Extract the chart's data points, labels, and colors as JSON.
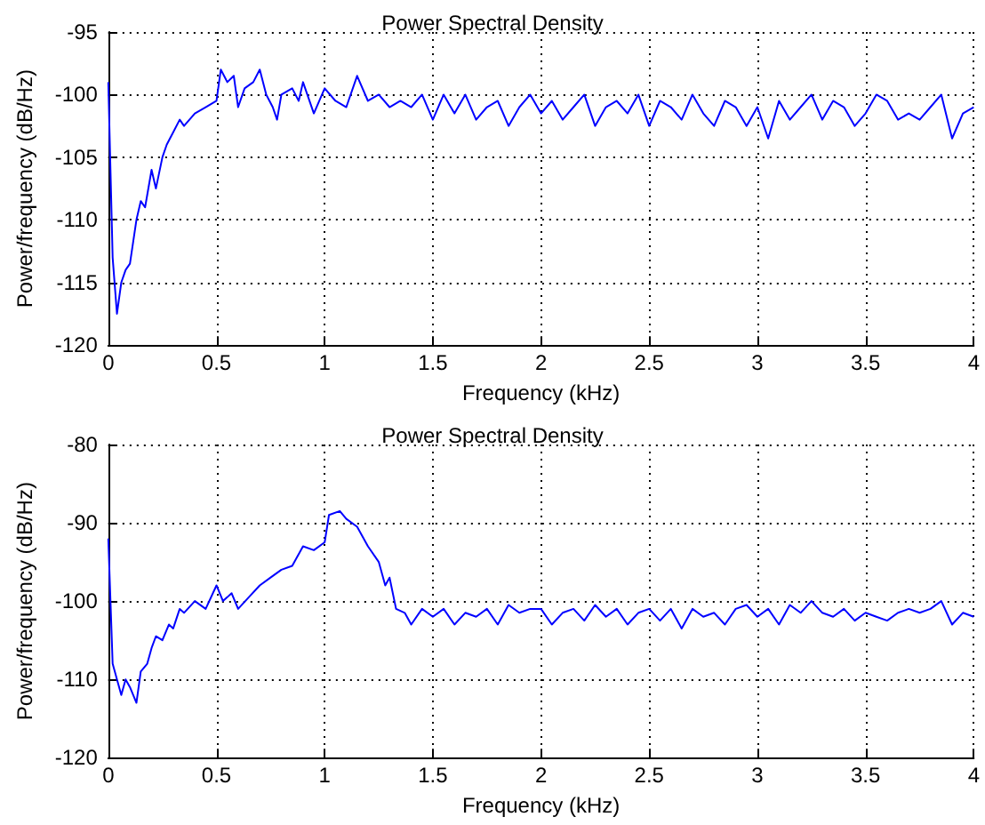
{
  "chart_data": [
    {
      "type": "line",
      "title": "Power Spectral Density",
      "xlabel": "Frequency (kHz)",
      "ylabel": "Power/frequency (dB/Hz)",
      "xlim": [
        0,
        4
      ],
      "xticks": [
        0,
        0.5,
        1,
        1.5,
        2,
        2.5,
        3,
        3.5,
        4
      ],
      "ylim": [
        -120,
        -95
      ],
      "yticks": [
        -120,
        -115,
        -110,
        -105,
        -100,
        -95
      ],
      "grid": true,
      "marker": "none",
      "line_style": "solid",
      "series": [
        {
          "color": "#0000ff",
          "x": [
            0,
            0.01,
            0.02,
            0.04,
            0.06,
            0.08,
            0.1,
            0.13,
            0.15,
            0.17,
            0.2,
            0.22,
            0.25,
            0.27,
            0.3,
            0.33,
            0.35,
            0.4,
            0.45,
            0.5,
            0.52,
            0.55,
            0.58,
            0.6,
            0.63,
            0.67,
            0.7,
            0.73,
            0.76,
            0.78,
            0.8,
            0.85,
            0.88,
            0.9,
            0.95,
            1.0,
            1.05,
            1.1,
            1.15,
            1.2,
            1.25,
            1.3,
            1.35,
            1.4,
            1.45,
            1.5,
            1.55,
            1.6,
            1.65,
            1.7,
            1.75,
            1.8,
            1.85,
            1.9,
            1.95,
            2.0,
            2.05,
            2.1,
            2.15,
            2.2,
            2.25,
            2.3,
            2.35,
            2.4,
            2.45,
            2.5,
            2.55,
            2.6,
            2.65,
            2.7,
            2.75,
            2.8,
            2.85,
            2.9,
            2.95,
            3.0,
            3.05,
            3.1,
            3.15,
            3.2,
            3.25,
            3.3,
            3.35,
            3.4,
            3.45,
            3.5,
            3.55,
            3.6,
            3.65,
            3.7,
            3.75,
            3.8,
            3.85,
            3.9,
            3.95,
            4.0
          ],
          "values": [
            -99,
            -106,
            -113,
            -117.5,
            -115,
            -114,
            -113.5,
            -110,
            -108.5,
            -109,
            -106,
            -107.5,
            -105,
            -104,
            -103,
            -102,
            -102.5,
            -101.5,
            -101,
            -100.5,
            -98,
            -99,
            -98.5,
            -101,
            -99.5,
            -99,
            -98,
            -100,
            -101,
            -102,
            -100,
            -99.5,
            -100.5,
            -99,
            -101.5,
            -99.5,
            -100.5,
            -101,
            -98.5,
            -100.5,
            -100,
            -101,
            -100.5,
            -101,
            -100,
            -102,
            -100,
            -101.5,
            -100,
            -102,
            -101,
            -100.5,
            -102.5,
            -101,
            -100,
            -101.5,
            -100.5,
            -102,
            -101,
            -100,
            -102.5,
            -101,
            -100.5,
            -101.5,
            -100,
            -102.5,
            -100.5,
            -101,
            -102,
            -100,
            -101.5,
            -102.5,
            -100.5,
            -101,
            -102.5,
            -101,
            -103.5,
            -100.5,
            -102,
            -101,
            -100,
            -102,
            -100.5,
            -101,
            -102.5,
            -101.5,
            -100,
            -100.5,
            -102,
            -101.5,
            -102,
            -101,
            -100,
            -103.5,
            -101.5,
            -101
          ]
        }
      ]
    },
    {
      "type": "line",
      "title": "Power Spectral Density",
      "xlabel": "Frequency (kHz)",
      "ylabel": "Power/frequency (dB/Hz)",
      "xlim": [
        0,
        4
      ],
      "xticks": [
        0,
        0.5,
        1,
        1.5,
        2,
        2.5,
        3,
        3.5,
        4
      ],
      "ylim": [
        -120,
        -80
      ],
      "yticks": [
        -120,
        -110,
        -100,
        -90,
        -80
      ],
      "grid": true,
      "marker": "none",
      "line_style": "solid",
      "series": [
        {
          "color": "#0000ff",
          "x": [
            0,
            0.01,
            0.02,
            0.04,
            0.06,
            0.08,
            0.1,
            0.13,
            0.15,
            0.18,
            0.2,
            0.22,
            0.25,
            0.28,
            0.3,
            0.33,
            0.35,
            0.4,
            0.45,
            0.5,
            0.53,
            0.57,
            0.6,
            0.65,
            0.7,
            0.75,
            0.8,
            0.85,
            0.9,
            0.95,
            1.0,
            1.02,
            1.07,
            1.1,
            1.15,
            1.2,
            1.25,
            1.28,
            1.3,
            1.33,
            1.37,
            1.4,
            1.45,
            1.5,
            1.55,
            1.6,
            1.65,
            1.7,
            1.75,
            1.8,
            1.85,
            1.9,
            1.95,
            2.0,
            2.05,
            2.1,
            2.15,
            2.2,
            2.25,
            2.3,
            2.35,
            2.4,
            2.45,
            2.5,
            2.55,
            2.6,
            2.65,
            2.7,
            2.75,
            2.8,
            2.85,
            2.9,
            2.95,
            3.0,
            3.05,
            3.1,
            3.15,
            3.2,
            3.25,
            3.3,
            3.35,
            3.4,
            3.45,
            3.5,
            3.55,
            3.6,
            3.65,
            3.7,
            3.75,
            3.8,
            3.85,
            3.9,
            3.95,
            4.0
          ],
          "values": [
            -92,
            -100,
            -108,
            -110,
            -112,
            -110,
            -111,
            -113,
            -109,
            -108,
            -106,
            -104.5,
            -105,
            -103,
            -103.5,
            -101,
            -101.5,
            -100,
            -101,
            -98,
            -100,
            -99,
            -101,
            -99.5,
            -98,
            -97,
            -96,
            -95.5,
            -93,
            -93.5,
            -92.5,
            -89,
            -88.5,
            -89.5,
            -90.5,
            -93,
            -95,
            -98,
            -97,
            -101,
            -101.5,
            -103,
            -101,
            -102,
            -101,
            -103,
            -101.5,
            -102,
            -101,
            -103,
            -100.5,
            -101.5,
            -101,
            -101,
            -103,
            -101.5,
            -101,
            -102.5,
            -100.5,
            -102,
            -101,
            -103,
            -101.5,
            -101,
            -102.5,
            -101,
            -103.5,
            -101,
            -102,
            -101.5,
            -103,
            -101,
            -100.5,
            -102,
            -101,
            -103,
            -100.5,
            -101.5,
            -100,
            -101.5,
            -102,
            -101,
            -102.5,
            -101.5,
            -102,
            -102.5,
            -101.5,
            -101,
            -101.5,
            -101,
            -100,
            -103,
            -101.5,
            -102
          ]
        }
      ]
    }
  ]
}
